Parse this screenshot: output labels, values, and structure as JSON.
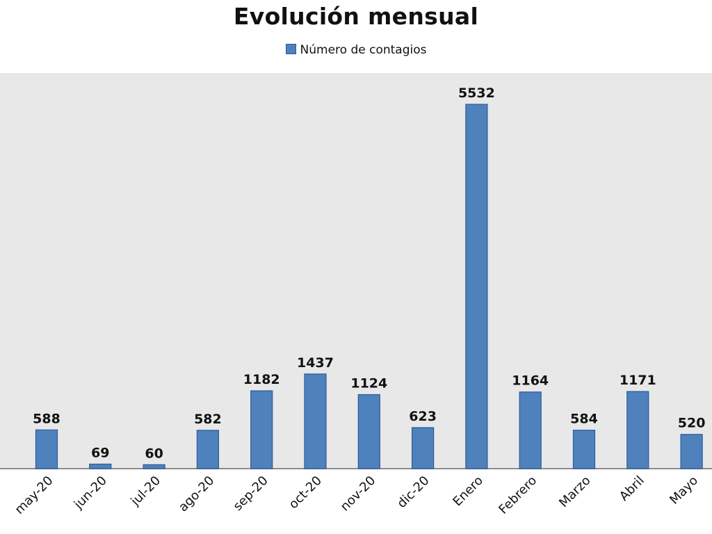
{
  "chart_data": {
    "type": "bar",
    "title": "Evolución mensual",
    "xlabel": "",
    "ylabel": "",
    "legend_position": "top",
    "grid": false,
    "ylim": [
      0,
      5532
    ],
    "categories": [
      "may-20",
      "jun-20",
      "jul-20",
      "ago-20",
      "sep-20",
      "oct-20",
      "nov-20",
      "dic-20",
      "Enero",
      "Febrero",
      "Marzo",
      "Abril",
      "Mayo"
    ],
    "series": [
      {
        "name": "Número de contagios",
        "values": [
          588,
          69,
          60,
          582,
          1182,
          1437,
          1124,
          623,
          5532,
          1164,
          584,
          1171,
          520
        ],
        "color": "#4f81bd"
      }
    ],
    "plot_background": "#e8e8e8"
  }
}
